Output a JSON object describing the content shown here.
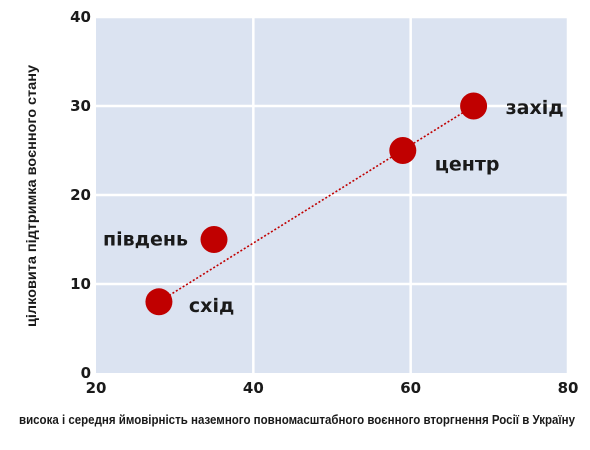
{
  "chart_data": {
    "type": "scatter",
    "title": "",
    "xlabel": "висока і середня ймовірність наземного повномасштабного воєнного вторгнення Росії в Україну",
    "ylabel": "цілковита підтримка воєнного стану",
    "xlim": [
      20,
      80
    ],
    "ylim": [
      0,
      40
    ],
    "x_ticks": [
      20,
      40,
      60,
      80
    ],
    "y_ticks": [
      0,
      10,
      20,
      30,
      40
    ],
    "x_tick_labels": [
      "20",
      "40",
      "60",
      "80"
    ],
    "y_tick_labels": [
      "0",
      "10",
      "20",
      "30",
      "40"
    ],
    "grid": true,
    "points": [
      {
        "label": "схід",
        "x": 28,
        "y": 8
      },
      {
        "label": "південь",
        "x": 35,
        "y": 15
      },
      {
        "label": "центр",
        "x": 59,
        "y": 25
      },
      {
        "label": "захід",
        "x": 68,
        "y": 30
      }
    ],
    "trendline": {
      "style": "dotted",
      "from": [
        28,
        8
      ],
      "to": [
        68,
        30
      ]
    },
    "colors": {
      "plot_background": "#dbe3f1",
      "grid": "#ffffff",
      "marker": "#c00000",
      "trendline": "#c00000"
    }
  }
}
